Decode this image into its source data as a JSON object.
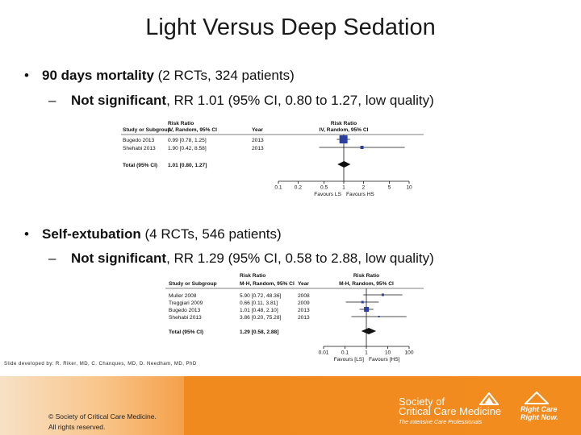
{
  "title": "Light Versus Deep Sedation",
  "bullets": [
    {
      "bold": "90 days mortality",
      "rest": " (2 RCTs, 324 patients)",
      "sub_bold": "Not significant",
      "sub_rest": ", RR 1.01 (95% CI, 0.80 to 1.27, low quality)"
    },
    {
      "bold": "Self-extubation",
      "rest": " (4 RCTs, 546 patients)",
      "sub_bold": "Not significant",
      "sub_rest": ", RR 1.29 (95% CI, 0.58 to 2.88, low quality)"
    }
  ],
  "footnote": "Slide developed by: R. Riker, MD, C. Chanques, MD, D. Needham, MD, PhD",
  "copyright": [
    "© Society of Critical Care Medicine.",
    "All rights reserved."
  ],
  "logo": {
    "sccm_line1": "Society of",
    "sccm_line2": "Critical Care Medicine",
    "sccm_tagline": "The Intensive Care Professionals",
    "rcrn_line1": "Right Care",
    "rcrn_line2": "Right Now."
  },
  "colors": {
    "footer_orange": "#f08a1f",
    "square": "#2b3fa0",
    "diamond": "#111111"
  },
  "chart_data": [
    {
      "type": "forest",
      "header": {
        "col1": "Study or Subgroup",
        "col2_top": "Risk Ratio",
        "col2": "IV, Random, 95% CI",
        "col3": "Year",
        "plot_top": "Risk Ratio",
        "plot": "IV, Random, 95% CI"
      },
      "studies": [
        {
          "name": "Bugedo 2013",
          "rr": 0.99,
          "lo": 0.78,
          "hi": 1.25,
          "label": "0.99 [0.78, 1.25]",
          "year": "2013"
        },
        {
          "name": "Shehabi 2013",
          "rr": 1.9,
          "lo": 0.42,
          "hi": 8.58,
          "label": "1.90 [0.42, 8.58]",
          "year": "2013"
        }
      ],
      "total": {
        "name": "Total (95% CI)",
        "rr": 1.01,
        "lo": 0.8,
        "hi": 1.27,
        "label": "1.01 [0.80, 1.27]"
      },
      "x_ticks": [
        "0.1",
        "0.2",
        "0.5",
        "1",
        "2",
        "5",
        "10"
      ],
      "x_tick_values": [
        0.1,
        0.2,
        0.5,
        1,
        2,
        5,
        10
      ],
      "xlim": [
        0.1,
        10
      ],
      "scale": "log",
      "favours_left": "Favours LS",
      "favours_right": "Favours HS"
    },
    {
      "type": "forest",
      "header": {
        "col1": "Study or Subgroup",
        "col2_top": "Risk Ratio",
        "col2": "M-H, Random, 95% CI",
        "col3": "Year",
        "plot_top": "Risk Ratio",
        "plot": "M-H, Random, 95% CI"
      },
      "studies": [
        {
          "name": "Muller 2008",
          "rr": 5.9,
          "lo": 0.72,
          "hi": 48.36,
          "label": "5.90 [0.72, 48.36]",
          "year": "2008"
        },
        {
          "name": "Treggiari 2009",
          "rr": 0.66,
          "lo": 0.11,
          "hi": 3.81,
          "label": "0.66 [0.11, 3.81]",
          "year": "2009"
        },
        {
          "name": "Bugedo 2013",
          "rr": 1.01,
          "lo": 0.48,
          "hi": 2.1,
          "label": "1.01 [0.48, 2.10]",
          "year": "2013"
        },
        {
          "name": "Shehabi 2013",
          "rr": 3.86,
          "lo": 0.2,
          "hi": 75.28,
          "label": "3.86 [0.20, 75.28]",
          "year": "2013"
        }
      ],
      "total": {
        "name": "Total (95% CI)",
        "rr": 1.29,
        "lo": 0.58,
        "hi": 2.88,
        "label": "1.29 [0.58, 2.88]"
      },
      "x_ticks": [
        "0.01",
        "0.1",
        "1",
        "10",
        "100"
      ],
      "x_tick_values": [
        0.01,
        0.1,
        1,
        10,
        100
      ],
      "xlim": [
        0.01,
        100
      ],
      "scale": "log",
      "favours_left": "Favours [LS]",
      "favours_right": "Favours [HS]"
    }
  ]
}
